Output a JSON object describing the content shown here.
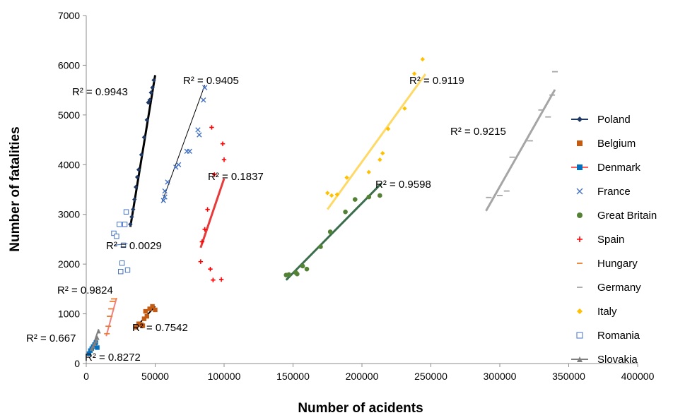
{
  "chart_data": {
    "type": "scatter",
    "title": "",
    "xlabel": "Number of acidents",
    "ylabel": "Number of fatalities",
    "xlim": [
      0,
      400000
    ],
    "ylim": [
      0,
      7000
    ],
    "xticks": [
      0,
      50000,
      100000,
      150000,
      200000,
      250000,
      300000,
      350000,
      400000
    ],
    "yticks": [
      0,
      1000,
      2000,
      3000,
      4000,
      5000,
      6000,
      7000
    ],
    "grid": false,
    "legend_position": "right",
    "series": [
      {
        "name": "Poland",
        "color": "#1f3864",
        "marker": "diamond",
        "points": [
          [
            32000,
            2800
          ],
          [
            33000,
            2950
          ],
          [
            34000,
            3100
          ],
          [
            35000,
            3300
          ],
          [
            36000,
            3550
          ],
          [
            37000,
            3750
          ],
          [
            38000,
            3900
          ],
          [
            40000,
            4200
          ],
          [
            42000,
            4550
          ],
          [
            44000,
            4900
          ],
          [
            45000,
            5250
          ],
          [
            46000,
            5300
          ],
          [
            47000,
            5450
          ],
          [
            48000,
            5550
          ],
          [
            49000,
            5700
          ]
        ],
        "trend": {
          "x": [
            32000,
            50000
          ],
          "y": [
            2750,
            5800
          ],
          "color": "#000000",
          "width": 3
        },
        "r2": "R² = 0.9943"
      },
      {
        "name": "Belgium",
        "color": "#c55a11",
        "marker": "square",
        "points": [
          [
            36000,
            730
          ],
          [
            38000,
            800
          ],
          [
            40000,
            780
          ],
          [
            41000,
            760
          ],
          [
            42000,
            900
          ],
          [
            43000,
            1050
          ],
          [
            44000,
            950
          ],
          [
            46000,
            1100
          ],
          [
            48000,
            1150
          ],
          [
            50000,
            1080
          ]
        ],
        "trend": {
          "x": [
            35000,
            50000
          ],
          "y": [
            700,
            1150
          ],
          "color": "#000000",
          "width": 2
        },
        "r2": "R² = 0.7542"
      },
      {
        "name": "Denmark",
        "color": "#0070c0",
        "marker": "square",
        "points": [
          [
            2000,
            200
          ],
          [
            3000,
            260
          ],
          [
            4000,
            300
          ],
          [
            5000,
            340
          ],
          [
            6000,
            380
          ],
          [
            7000,
            420
          ],
          [
            8000,
            320
          ]
        ],
        "trend": {
          "x": [
            1500,
            8000
          ],
          "y": [
            150,
            450
          ],
          "color": "#ff5b5b",
          "width": 2
        },
        "r2": "R² = 0.8272"
      },
      {
        "name": "France",
        "color": "#4472c4",
        "marker": "x",
        "points": [
          [
            56000,
            3280
          ],
          [
            57000,
            3350
          ],
          [
            57000,
            3470
          ],
          [
            59000,
            3650
          ],
          [
            65000,
            3950
          ],
          [
            67000,
            4000
          ],
          [
            73000,
            4270
          ],
          [
            75000,
            4270
          ],
          [
            81000,
            4700
          ],
          [
            82000,
            4600
          ],
          [
            85000,
            5300
          ],
          [
            86000,
            5550
          ]
        ],
        "trend": {
          "x": [
            55000,
            86000
          ],
          "y": [
            3250,
            5600
          ],
          "color": "#000000",
          "width": 1
        },
        "r2": "R² = 0.9405"
      },
      {
        "name": "Great Britain",
        "color": "#548235",
        "marker": "circle",
        "points": [
          [
            145000,
            1780
          ],
          [
            147000,
            1790
          ],
          [
            152000,
            1830
          ],
          [
            153000,
            1800
          ],
          [
            157000,
            1960
          ],
          [
            160000,
            1900
          ],
          [
            170000,
            2350
          ],
          [
            177000,
            2650
          ],
          [
            188000,
            3050
          ],
          [
            195000,
            3300
          ],
          [
            205000,
            3350
          ],
          [
            213000,
            3380
          ]
        ],
        "trend": {
          "x": [
            145000,
            214000
          ],
          "y": [
            1680,
            3620
          ],
          "color": "#3b6e4d",
          "width": 3
        },
        "r2": "R² = 0.9598"
      },
      {
        "name": "Spain",
        "color": "#ff0000",
        "marker": "plus",
        "points": [
          [
            83000,
            2050
          ],
          [
            84000,
            2450
          ],
          [
            86000,
            2700
          ],
          [
            88000,
            3100
          ],
          [
            90000,
            1900
          ],
          [
            91000,
            4750
          ],
          [
            92000,
            1680
          ],
          [
            93000,
            3800
          ],
          [
            98000,
            1690
          ],
          [
            99000,
            4420
          ],
          [
            100000,
            4100
          ]
        ],
        "trend": {
          "x": [
            83000,
            100000
          ],
          "y": [
            2330,
            3720
          ],
          "color": "#e83a3a",
          "width": 3
        },
        "r2": "R² = 0.1837"
      },
      {
        "name": "Hungary",
        "color": "#ed7d31",
        "marker": "dash",
        "points": [
          [
            15000,
            600
          ],
          [
            16000,
            750
          ],
          [
            17000,
            950
          ],
          [
            18000,
            1100
          ],
          [
            19000,
            1250
          ],
          [
            20000,
            1300
          ]
        ],
        "trend": {
          "x": [
            14500,
            22000
          ],
          "y": [
            550,
            1320
          ],
          "color": "#f08080",
          "width": 2
        },
        "r2": "R² = 0.9824"
      },
      {
        "name": "Germany",
        "color": "#a5a5a5",
        "marker": "dash",
        "points": [
          [
            292000,
            3340
          ],
          [
            300000,
            3380
          ],
          [
            305000,
            3470
          ],
          [
            309000,
            4150
          ],
          [
            322000,
            4480
          ],
          [
            330000,
            5100
          ],
          [
            335000,
            4960
          ],
          [
            338000,
            5400
          ],
          [
            340000,
            5870
          ]
        ],
        "trend": {
          "x": [
            290000,
            340000
          ],
          "y": [
            3070,
            5510
          ],
          "color": "#a5a5a5",
          "width": 3
        },
        "r2": "R² = 0.9215"
      },
      {
        "name": "Italy",
        "color": "#ffc000",
        "marker": "diamond",
        "points": [
          [
            175000,
            3430
          ],
          [
            178000,
            3380
          ],
          [
            182000,
            3400
          ],
          [
            189000,
            3740
          ],
          [
            205000,
            3850
          ],
          [
            213000,
            4100
          ],
          [
            215000,
            4230
          ],
          [
            219000,
            4720
          ],
          [
            231000,
            5130
          ],
          [
            238000,
            5830
          ],
          [
            244000,
            6120
          ]
        ],
        "trend": {
          "x": [
            175000,
            246000
          ],
          "y": [
            3100,
            5820
          ],
          "color": "#ffd966",
          "width": 3
        },
        "r2": "R² = 0.9119"
      },
      {
        "name": "Romania",
        "color": "#4472c4",
        "marker": "open-square",
        "points": [
          [
            20000,
            2620
          ],
          [
            22000,
            2560
          ],
          [
            24000,
            2800
          ],
          [
            25000,
            1850
          ],
          [
            26000,
            2020
          ],
          [
            27000,
            2380
          ],
          [
            28000,
            2800
          ],
          [
            29000,
            3050
          ],
          [
            30000,
            1880
          ]
        ],
        "trend": {
          "x": [
            20000,
            30000
          ],
          "y": [
            2380,
            2410
          ],
          "color": "#4472c4",
          "width": 1
        },
        "r2": "R² = 0.0029"
      },
      {
        "name": "Slovakia",
        "color": "#7f7f7f",
        "marker": "triangle",
        "points": [
          [
            4000,
            300
          ],
          [
            5000,
            350
          ],
          [
            6000,
            400
          ],
          [
            7000,
            450
          ],
          [
            8000,
            520
          ],
          [
            9000,
            650
          ]
        ],
        "trend": {
          "x": [
            3500,
            9000
          ],
          "y": [
            250,
            690
          ],
          "color": "#7f7f7f",
          "width": 2
        },
        "r2": "R² = 0.667"
      }
    ]
  }
}
